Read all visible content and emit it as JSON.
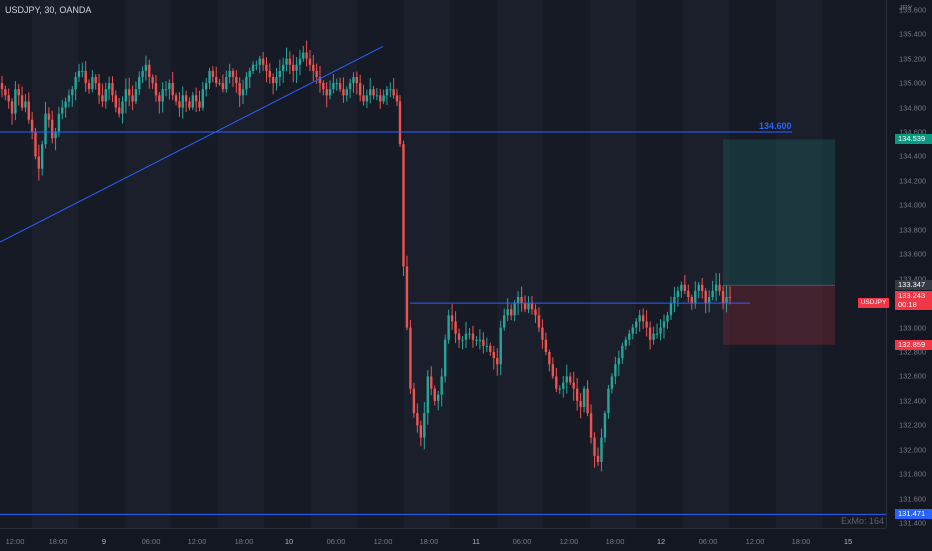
{
  "title": "USDJPY, 30, OANDA",
  "currency": "JPY",
  "symbol_tag": "USDJPY",
  "exmo_label": "ExMo: 164",
  "colors": {
    "bull": "#26a69a",
    "bear": "#ef5350",
    "line": "#2962ff",
    "profit_zone": "#26a69a",
    "loss_zone": "#f23645",
    "current_price": "#f23645",
    "target": "#089981",
    "stop": "#f23645"
  },
  "price_axis": {
    "labels": [
      "135.600",
      "135.400",
      "135.200",
      "135.000",
      "134.800",
      "134.600",
      "134.400",
      "134.200",
      "134.000",
      "133.800",
      "133.600",
      "133.400",
      "133.200",
      "133.000",
      "132.800",
      "132.600",
      "132.400",
      "132.200",
      "132.000",
      "131.800",
      "131.600",
      "131.400"
    ],
    "tags": [
      {
        "value": "134.539",
        "price": 134.539,
        "color": "#089981"
      },
      {
        "value": "133.347",
        "price": 133.347,
        "color": "#363a45"
      },
      {
        "value": "133.243",
        "price": 133.262,
        "color": "#f23645"
      },
      {
        "value": "00:18",
        "price": 133.182,
        "color": "#f23645"
      },
      {
        "value": "132.859",
        "price": 132.859,
        "color": "#f23645"
      },
      {
        "value": "131.471",
        "price": 131.471,
        "color": "#2962ff"
      }
    ]
  },
  "time_axis": [
    "12:00",
    "18:00",
    "9",
    "06:00",
    "12:00",
    "18:00",
    "10",
    "06:00",
    "12:00",
    "18:00",
    "11",
    "06:00",
    "12:00",
    "18:00",
    "12",
    "06:00",
    "12:00",
    "18:00",
    "15"
  ],
  "drawings": {
    "horizontal_line_label": "134.600",
    "horizontal_price": 134.6,
    "support_price": 133.2,
    "bottom_price": 131.471,
    "trend_start": {
      "bar": 0,
      "price": 133.7
    },
    "trend_end": {
      "bar": 126,
      "price": 135.3
    }
  },
  "position": {
    "entry": 133.347,
    "target": 134.539,
    "stop": 132.859
  },
  "chart_data": {
    "type": "candlestick",
    "ylim": [
      131.4,
      135.65
    ],
    "closes": [
      134.95,
      134.9,
      134.85,
      134.75,
      134.95,
      134.9,
      134.8,
      134.85,
      134.7,
      134.6,
      134.4,
      134.3,
      134.5,
      134.75,
      134.7,
      134.55,
      134.6,
      134.75,
      134.8,
      134.85,
      134.9,
      134.95,
      135.05,
      135.1,
      135.1,
      135.0,
      134.95,
      135.05,
      135.0,
      134.9,
      134.85,
      134.95,
      135.0,
      134.9,
      134.8,
      134.75,
      134.85,
      134.95,
      134.9,
      134.85,
      134.95,
      135.05,
      135.1,
      135.15,
      135.05,
      135.0,
      134.9,
      134.85,
      134.95,
      134.95,
      135.0,
      134.9,
      134.85,
      134.8,
      134.9,
      134.85,
      134.8,
      134.9,
      134.85,
      134.8,
      134.95,
      135.0,
      135.1,
      135.05,
      135.0,
      135.0,
      134.95,
      135.05,
      135.1,
      135.05,
      135.0,
      134.9,
      134.95,
      135.05,
      135.1,
      135.15,
      135.15,
      135.2,
      135.15,
      135.1,
      135.05,
      135.0,
      135.05,
      135.1,
      135.15,
      135.2,
      135.15,
      135.1,
      135.15,
      135.2,
      135.25,
      135.2,
      135.15,
      135.1,
      135.05,
      135.0,
      134.95,
      134.9,
      134.95,
      135.0,
      135.0,
      134.95,
      134.9,
      134.95,
      135.0,
      135.05,
      135.0,
      134.9,
      134.85,
      134.9,
      134.95,
      134.9,
      134.9,
      134.85,
      134.9,
      134.95,
      134.95,
      134.9,
      134.85,
      134.5,
      133.5,
      133.0,
      132.5,
      132.3,
      132.2,
      132.1,
      132.3,
      132.6,
      132.5,
      132.4,
      132.45,
      132.6,
      132.9,
      133.1,
      133.05,
      132.95,
      132.9,
      132.9,
      132.95,
      132.95,
      132.9,
      132.9,
      132.9,
      132.85,
      132.85,
      132.8,
      132.75,
      132.7,
      133.0,
      133.1,
      133.15,
      133.1,
      133.2,
      133.25,
      133.2,
      133.15,
      133.2,
      133.15,
      133.1,
      133.0,
      132.9,
      132.8,
      132.7,
      132.6,
      132.5,
      132.5,
      132.55,
      132.6,
      132.55,
      132.5,
      132.4,
      132.35,
      132.5,
      132.3,
      132.1,
      131.95,
      131.9,
      132.1,
      132.3,
      132.5,
      132.6,
      132.7,
      132.75,
      132.85,
      132.9,
      132.95,
      133.0,
      133.05,
      133.1,
      133.05,
      133.0,
      132.9,
      132.95,
      132.95,
      133.0,
      133.05,
      133.1,
      133.2,
      133.25,
      133.3,
      133.35,
      133.3,
      133.25,
      133.2,
      133.3,
      133.35,
      133.3,
      133.2,
      133.25,
      133.3,
      133.35,
      133.3,
      133.2,
      133.25,
      133.243
    ]
  }
}
